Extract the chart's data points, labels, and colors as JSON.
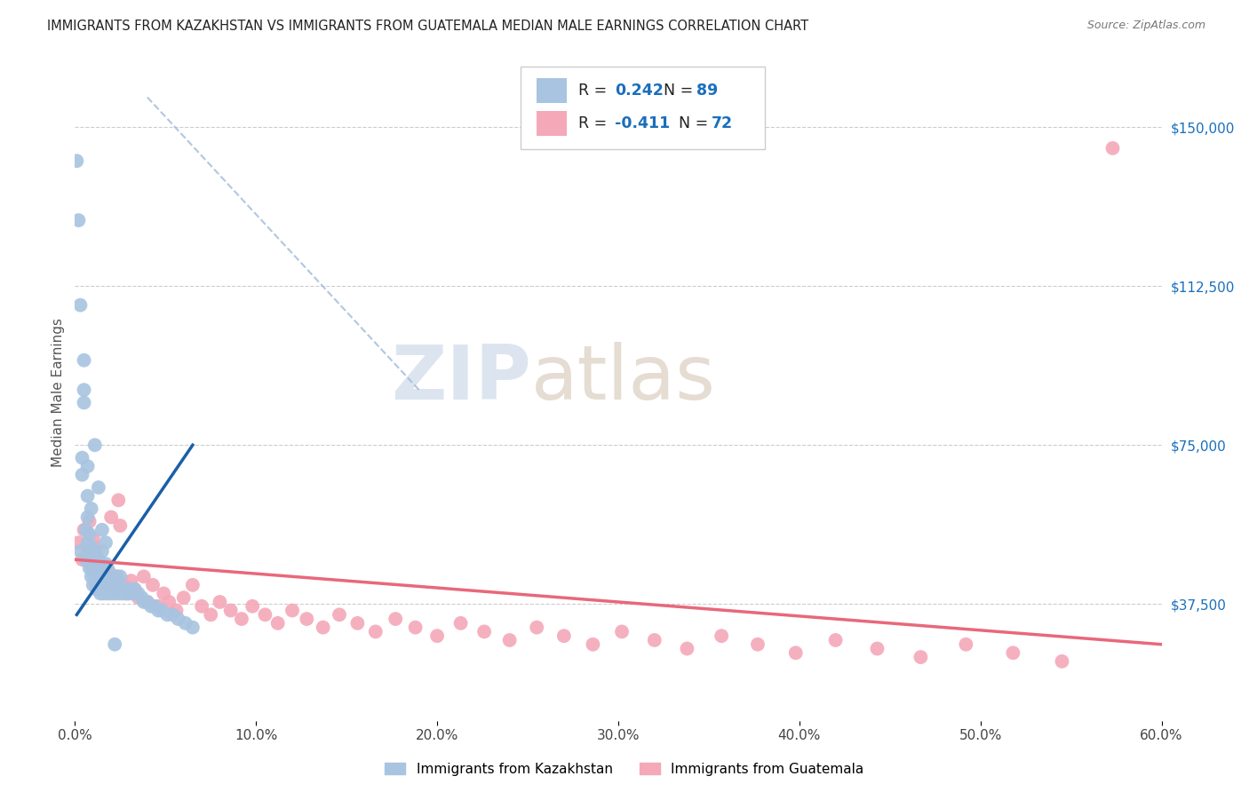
{
  "title": "IMMIGRANTS FROM KAZAKHSTAN VS IMMIGRANTS FROM GUATEMALA MEDIAN MALE EARNINGS CORRELATION CHART",
  "source": "Source: ZipAtlas.com",
  "ylabel": "Median Male Earnings",
  "y_ticks": [
    37500,
    75000,
    112500,
    150000
  ],
  "y_tick_labels": [
    "$37,500",
    "$75,000",
    "$112,500",
    "$150,000"
  ],
  "x_min": 0.0,
  "x_max": 0.6,
  "y_min": 10000,
  "y_max": 165000,
  "kazakhstan_color": "#a8c4e0",
  "guatemala_color": "#f4a8b8",
  "kazakhstan_line_color": "#1a5fa8",
  "guatemala_line_color": "#e8687a",
  "trendline_dashed_color": "#a0b8d8",
  "background_color": "#ffffff",
  "legend_R_color": "#1a6fbb",
  "legend_N_color": "#1a6fbb",
  "watermark_zip_color": "#c8d8e8",
  "watermark_atlas_color": "#d8c8b8",
  "R_kazakhstan": "0.242",
  "N_kazakhstan": "89",
  "R_guatemala": "-0.411",
  "N_guatemala": "72",
  "kazakhstan_scatter_x": [
    0.001,
    0.002,
    0.003,
    0.004,
    0.004,
    0.005,
    0.005,
    0.006,
    0.006,
    0.007,
    0.007,
    0.007,
    0.008,
    0.008,
    0.008,
    0.009,
    0.009,
    0.009,
    0.01,
    0.01,
    0.01,
    0.011,
    0.011,
    0.011,
    0.012,
    0.012,
    0.012,
    0.013,
    0.013,
    0.013,
    0.014,
    0.014,
    0.014,
    0.015,
    0.015,
    0.015,
    0.015,
    0.016,
    0.016,
    0.016,
    0.017,
    0.017,
    0.017,
    0.018,
    0.018,
    0.018,
    0.019,
    0.019,
    0.02,
    0.02,
    0.021,
    0.021,
    0.022,
    0.022,
    0.023,
    0.023,
    0.024,
    0.025,
    0.025,
    0.026,
    0.027,
    0.028,
    0.029,
    0.03,
    0.031,
    0.032,
    0.033,
    0.035,
    0.037,
    0.038,
    0.04,
    0.042,
    0.044,
    0.046,
    0.048,
    0.051,
    0.054,
    0.057,
    0.061,
    0.065,
    0.003,
    0.005,
    0.007,
    0.009,
    0.011,
    0.013,
    0.015,
    0.017,
    0.022
  ],
  "kazakhstan_scatter_y": [
    142000,
    128000,
    50000,
    68000,
    72000,
    95000,
    85000,
    55000,
    48000,
    52000,
    58000,
    63000,
    46000,
    50000,
    54000,
    44000,
    47000,
    51000,
    42000,
    45000,
    48000,
    43000,
    46000,
    50000,
    41000,
    44000,
    47000,
    42000,
    45000,
    48000,
    40000,
    43000,
    46000,
    41000,
    44000,
    47000,
    50000,
    40000,
    43000,
    46000,
    41000,
    44000,
    47000,
    40000,
    43000,
    46000,
    41000,
    44000,
    40000,
    43000,
    41000,
    44000,
    40000,
    43000,
    41000,
    44000,
    40000,
    41000,
    44000,
    40000,
    41000,
    40000,
    41000,
    40000,
    41000,
    40000,
    41000,
    40000,
    39000,
    38000,
    38000,
    37000,
    37000,
    36000,
    36000,
    35000,
    35000,
    34000,
    33000,
    32000,
    108000,
    88000,
    70000,
    60000,
    75000,
    65000,
    55000,
    52000,
    28000
  ],
  "guatemala_scatter_x": [
    0.002,
    0.004,
    0.005,
    0.007,
    0.008,
    0.009,
    0.01,
    0.011,
    0.012,
    0.013,
    0.014,
    0.015,
    0.016,
    0.017,
    0.018,
    0.019,
    0.02,
    0.021,
    0.022,
    0.023,
    0.024,
    0.025,
    0.027,
    0.029,
    0.031,
    0.033,
    0.035,
    0.038,
    0.04,
    0.043,
    0.046,
    0.049,
    0.052,
    0.056,
    0.06,
    0.065,
    0.07,
    0.075,
    0.08,
    0.086,
    0.092,
    0.098,
    0.105,
    0.112,
    0.12,
    0.128,
    0.137,
    0.146,
    0.156,
    0.166,
    0.177,
    0.188,
    0.2,
    0.213,
    0.226,
    0.24,
    0.255,
    0.27,
    0.286,
    0.302,
    0.32,
    0.338,
    0.357,
    0.377,
    0.398,
    0.42,
    0.443,
    0.467,
    0.492,
    0.518,
    0.545,
    0.573
  ],
  "guatemala_scatter_y": [
    52000,
    48000,
    55000,
    50000,
    57000,
    46000,
    53000,
    51000,
    49000,
    44000,
    47000,
    43000,
    46000,
    44000,
    42000,
    45000,
    58000,
    43000,
    41000,
    44000,
    62000,
    56000,
    42000,
    40000,
    43000,
    41000,
    39000,
    44000,
    38000,
    42000,
    37000,
    40000,
    38000,
    36000,
    39000,
    42000,
    37000,
    35000,
    38000,
    36000,
    34000,
    37000,
    35000,
    33000,
    36000,
    34000,
    32000,
    35000,
    33000,
    31000,
    34000,
    32000,
    30000,
    33000,
    31000,
    29000,
    32000,
    30000,
    28000,
    31000,
    29000,
    27000,
    30000,
    28000,
    26000,
    29000,
    27000,
    25000,
    28000,
    26000,
    24000,
    145000
  ],
  "dashed_line_x": [
    0.04,
    0.19
  ],
  "dashed_line_y": [
    157000,
    88000
  ],
  "kaz_trendline_x": [
    0.001,
    0.065
  ],
  "kaz_trendline_y": [
    35000,
    75000
  ],
  "guat_trendline_x": [
    0.0,
    0.6
  ],
  "guat_trendline_y": [
    48000,
    28000
  ]
}
